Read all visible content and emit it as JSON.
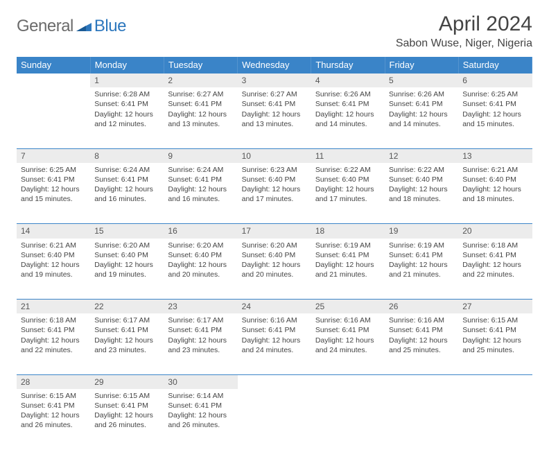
{
  "logo": {
    "general": "General",
    "blue": "Blue"
  },
  "title": "April 2024",
  "location": "Sabon Wuse, Niger, Nigeria",
  "colors": {
    "header_bg": "#3a84c8",
    "header_text": "#ffffff",
    "daynum_bg": "#ececec",
    "text": "#444444",
    "logo_gray": "#6b6b6b",
    "logo_blue": "#2d77bd"
  },
  "weekdays": [
    "Sunday",
    "Monday",
    "Tuesday",
    "Wednesday",
    "Thursday",
    "Friday",
    "Saturday"
  ],
  "weeks": [
    {
      "nums": [
        "",
        "1",
        "2",
        "3",
        "4",
        "5",
        "6"
      ],
      "cells": [
        "",
        "Sunrise: 6:28 AM\nSunset: 6:41 PM\nDaylight: 12 hours and 12 minutes.",
        "Sunrise: 6:27 AM\nSunset: 6:41 PM\nDaylight: 12 hours and 13 minutes.",
        "Sunrise: 6:27 AM\nSunset: 6:41 PM\nDaylight: 12 hours and 13 minutes.",
        "Sunrise: 6:26 AM\nSunset: 6:41 PM\nDaylight: 12 hours and 14 minutes.",
        "Sunrise: 6:26 AM\nSunset: 6:41 PM\nDaylight: 12 hours and 14 minutes.",
        "Sunrise: 6:25 AM\nSunset: 6:41 PM\nDaylight: 12 hours and 15 minutes."
      ]
    },
    {
      "nums": [
        "7",
        "8",
        "9",
        "10",
        "11",
        "12",
        "13"
      ],
      "cells": [
        "Sunrise: 6:25 AM\nSunset: 6:41 PM\nDaylight: 12 hours and 15 minutes.",
        "Sunrise: 6:24 AM\nSunset: 6:41 PM\nDaylight: 12 hours and 16 minutes.",
        "Sunrise: 6:24 AM\nSunset: 6:41 PM\nDaylight: 12 hours and 16 minutes.",
        "Sunrise: 6:23 AM\nSunset: 6:40 PM\nDaylight: 12 hours and 17 minutes.",
        "Sunrise: 6:22 AM\nSunset: 6:40 PM\nDaylight: 12 hours and 17 minutes.",
        "Sunrise: 6:22 AM\nSunset: 6:40 PM\nDaylight: 12 hours and 18 minutes.",
        "Sunrise: 6:21 AM\nSunset: 6:40 PM\nDaylight: 12 hours and 18 minutes."
      ]
    },
    {
      "nums": [
        "14",
        "15",
        "16",
        "17",
        "18",
        "19",
        "20"
      ],
      "cells": [
        "Sunrise: 6:21 AM\nSunset: 6:40 PM\nDaylight: 12 hours and 19 minutes.",
        "Sunrise: 6:20 AM\nSunset: 6:40 PM\nDaylight: 12 hours and 19 minutes.",
        "Sunrise: 6:20 AM\nSunset: 6:40 PM\nDaylight: 12 hours and 20 minutes.",
        "Sunrise: 6:20 AM\nSunset: 6:40 PM\nDaylight: 12 hours and 20 minutes.",
        "Sunrise: 6:19 AM\nSunset: 6:41 PM\nDaylight: 12 hours and 21 minutes.",
        "Sunrise: 6:19 AM\nSunset: 6:41 PM\nDaylight: 12 hours and 21 minutes.",
        "Sunrise: 6:18 AM\nSunset: 6:41 PM\nDaylight: 12 hours and 22 minutes."
      ]
    },
    {
      "nums": [
        "21",
        "22",
        "23",
        "24",
        "25",
        "26",
        "27"
      ],
      "cells": [
        "Sunrise: 6:18 AM\nSunset: 6:41 PM\nDaylight: 12 hours and 22 minutes.",
        "Sunrise: 6:17 AM\nSunset: 6:41 PM\nDaylight: 12 hours and 23 minutes.",
        "Sunrise: 6:17 AM\nSunset: 6:41 PM\nDaylight: 12 hours and 23 minutes.",
        "Sunrise: 6:16 AM\nSunset: 6:41 PM\nDaylight: 12 hours and 24 minutes.",
        "Sunrise: 6:16 AM\nSunset: 6:41 PM\nDaylight: 12 hours and 24 minutes.",
        "Sunrise: 6:16 AM\nSunset: 6:41 PM\nDaylight: 12 hours and 25 minutes.",
        "Sunrise: 6:15 AM\nSunset: 6:41 PM\nDaylight: 12 hours and 25 minutes."
      ]
    },
    {
      "nums": [
        "28",
        "29",
        "30",
        "",
        "",
        "",
        ""
      ],
      "cells": [
        "Sunrise: 6:15 AM\nSunset: 6:41 PM\nDaylight: 12 hours and 26 minutes.",
        "Sunrise: 6:15 AM\nSunset: 6:41 PM\nDaylight: 12 hours and 26 minutes.",
        "Sunrise: 6:14 AM\nSunset: 6:41 PM\nDaylight: 12 hours and 26 minutes.",
        "",
        "",
        "",
        ""
      ]
    }
  ]
}
